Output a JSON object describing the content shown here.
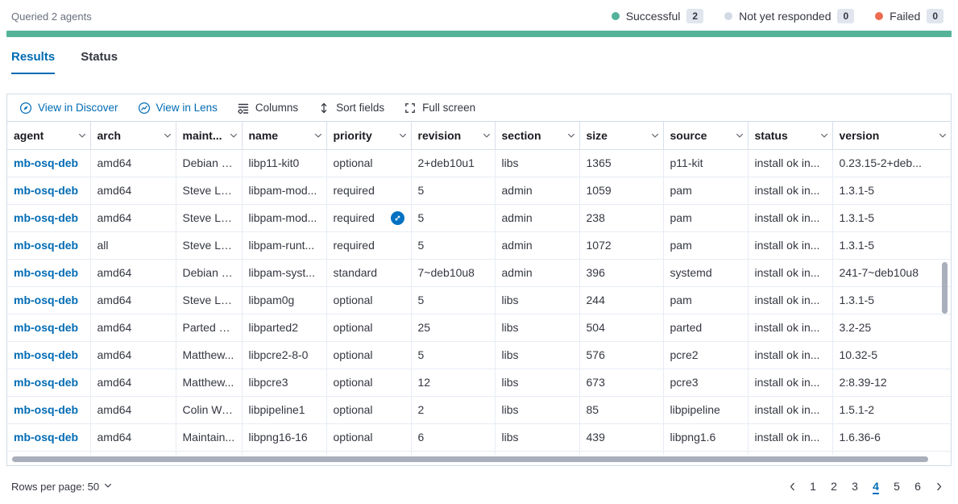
{
  "accent_color": "#006BB4",
  "header": {
    "queried_text": "Queried 2 agents",
    "progress_bar_color": "#54B399",
    "statuses": [
      {
        "label": "Successful",
        "count": "2",
        "dot_color": "#54B399"
      },
      {
        "label": "Not yet responded",
        "count": "0",
        "dot_color": "#D3DAE6"
      },
      {
        "label": "Failed",
        "count": "0",
        "dot_color": "#EE6B51"
      }
    ]
  },
  "tabs": [
    {
      "id": "results",
      "label": "Results",
      "active": true
    },
    {
      "id": "status",
      "label": "Status",
      "active": false
    }
  ],
  "toolbar": {
    "buttons": [
      {
        "id": "view-in-discover",
        "label": "View in Discover",
        "icon": "discover-icon",
        "primary": true
      },
      {
        "id": "view-in-lens",
        "label": "View in Lens",
        "icon": "lens-icon",
        "primary": true
      },
      {
        "id": "columns",
        "label": "Columns",
        "icon": "columns-icon",
        "primary": false
      },
      {
        "id": "sort-fields",
        "label": "Sort fields",
        "icon": "sort-fields-icon",
        "primary": false
      },
      {
        "id": "full-screen",
        "label": "Full screen",
        "icon": "fullscreen-icon",
        "primary": false
      }
    ]
  },
  "grid": {
    "columns": [
      {
        "key": "agent",
        "label": "agent"
      },
      {
        "key": "arch",
        "label": "arch"
      },
      {
        "key": "maintainer",
        "label": "maint..."
      },
      {
        "key": "name",
        "label": "name"
      },
      {
        "key": "priority",
        "label": "priority"
      },
      {
        "key": "revision",
        "label": "revision"
      },
      {
        "key": "section",
        "label": "section"
      },
      {
        "key": "size",
        "label": "size"
      },
      {
        "key": "source",
        "label": "source"
      },
      {
        "key": "status",
        "label": "status"
      },
      {
        "key": "version",
        "label": "version"
      }
    ],
    "rows": [
      {
        "agent": "mb-osq-deb",
        "arch": "amd64",
        "maintainer": "Debian G...",
        "name": "libp11-kit0",
        "priority": "optional",
        "revision": "2+deb10u1",
        "section": "libs",
        "size": "1365",
        "source": "p11-kit",
        "status": "install ok in...",
        "version": "0.23.15-2+deb..."
      },
      {
        "agent": "mb-osq-deb",
        "arch": "amd64",
        "maintainer": "Steve La...",
        "name": "libpam-mod...",
        "priority": "required",
        "revision": "5",
        "section": "admin",
        "size": "1059",
        "source": "pam",
        "status": "install ok in...",
        "version": "1.3.1-5"
      },
      {
        "agent": "mb-osq-deb",
        "arch": "amd64",
        "maintainer": "Steve La...",
        "name": "libpam-mod...",
        "priority": "required",
        "revision": "5",
        "section": "admin",
        "size": "238",
        "source": "pam",
        "status": "install ok in...",
        "version": "1.3.1-5",
        "expand_icon": true
      },
      {
        "agent": "mb-osq-deb",
        "arch": "all",
        "maintainer": "Steve La...",
        "name": "libpam-runt...",
        "priority": "required",
        "revision": "5",
        "section": "admin",
        "size": "1072",
        "source": "pam",
        "status": "install ok in...",
        "version": "1.3.1-5"
      },
      {
        "agent": "mb-osq-deb",
        "arch": "amd64",
        "maintainer": "Debian s...",
        "name": "libpam-syst...",
        "priority": "standard",
        "revision": "7~deb10u8",
        "section": "admin",
        "size": "396",
        "source": "systemd",
        "status": "install ok in...",
        "version": "241-7~deb10u8"
      },
      {
        "agent": "mb-osq-deb",
        "arch": "amd64",
        "maintainer": "Steve La...",
        "name": "libpam0g",
        "priority": "optional",
        "revision": "5",
        "section": "libs",
        "size": "244",
        "source": "pam",
        "status": "install ok in...",
        "version": "1.3.1-5"
      },
      {
        "agent": "mb-osq-deb",
        "arch": "amd64",
        "maintainer": "Parted M...",
        "name": "libparted2",
        "priority": "optional",
        "revision": "25",
        "section": "libs",
        "size": "504",
        "source": "parted",
        "status": "install ok in...",
        "version": "3.2-25"
      },
      {
        "agent": "mb-osq-deb",
        "arch": "amd64",
        "maintainer": "Matthew...",
        "name": "libpcre2-8-0",
        "priority": "optional",
        "revision": "5",
        "section": "libs",
        "size": "576",
        "source": "pcre2",
        "status": "install ok in...",
        "version": "10.32-5"
      },
      {
        "agent": "mb-osq-deb",
        "arch": "amd64",
        "maintainer": "Matthew...",
        "name": "libpcre3",
        "priority": "optional",
        "revision": "12",
        "section": "libs",
        "size": "673",
        "source": "pcre3",
        "status": "install ok in...",
        "version": "2:8.39-12"
      },
      {
        "agent": "mb-osq-deb",
        "arch": "amd64",
        "maintainer": "Colin Wa...",
        "name": "libpipeline1",
        "priority": "optional",
        "revision": "2",
        "section": "libs",
        "size": "85",
        "source": "libpipeline",
        "status": "install ok in...",
        "version": "1.5.1-2"
      },
      {
        "agent": "mb-osq-deb",
        "arch": "amd64",
        "maintainer": "Maintain...",
        "name": "libpng16-16",
        "priority": "optional",
        "revision": "6",
        "section": "libs",
        "size": "439",
        "source": "libpng1.6",
        "status": "install ok in...",
        "version": "1.6.36-6"
      }
    ]
  },
  "footer": {
    "rows_per_page_label": "Rows per page: 50",
    "pagination": {
      "pages": [
        "1",
        "2",
        "3",
        "4",
        "5",
        "6"
      ],
      "active_page": "4"
    }
  }
}
